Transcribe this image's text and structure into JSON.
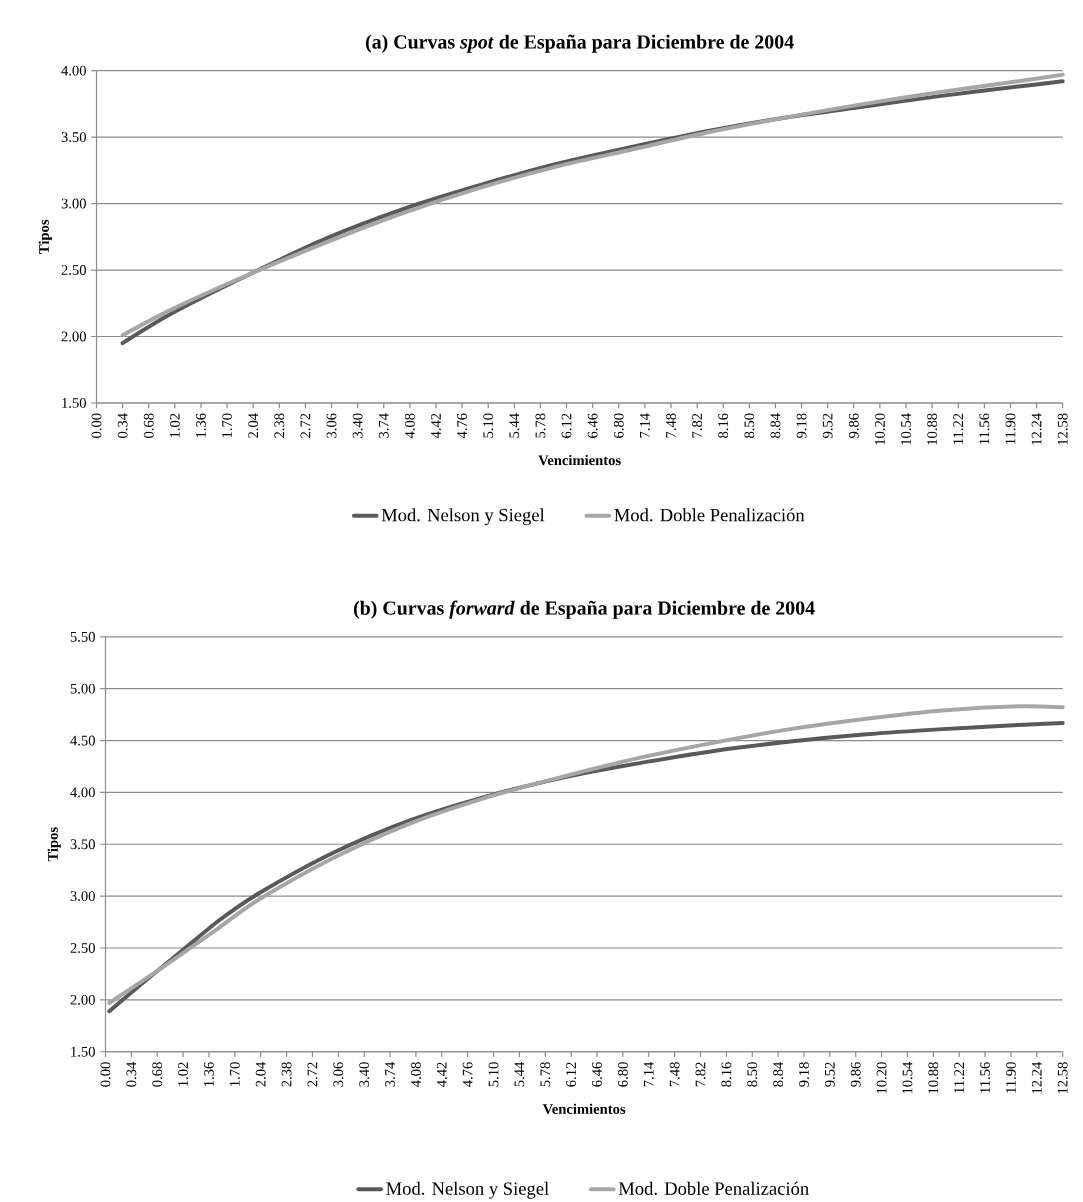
{
  "chart_data": [
    {
      "type": "line",
      "title": "(a) Curvas *spot* de España para Diciembre de 2004",
      "xlabel": "Vencimientos",
      "ylabel": "Tipos",
      "grid": "y",
      "legend": "bottom",
      "xlim": [
        0,
        12.58
      ],
      "xticks": [
        {
          "value": 0,
          "label": "0.00"
        },
        {
          "value": 0.34,
          "label": "0.34"
        },
        {
          "value": 0.68,
          "label": "0.68"
        },
        {
          "value": 1.02,
          "label": "1.02"
        },
        {
          "value": 1.36,
          "label": "1.36"
        },
        {
          "value": 1.7,
          "label": "1.70"
        },
        {
          "value": 2.04,
          "label": "2.04"
        },
        {
          "value": 2.38,
          "label": "2.38"
        },
        {
          "value": 2.72,
          "label": "2.72"
        },
        {
          "value": 3.06,
          "label": "3.06"
        },
        {
          "value": 3.4,
          "label": "3.40"
        },
        {
          "value": 3.74,
          "label": "3.74"
        },
        {
          "value": 4.08,
          "label": "4.08"
        },
        {
          "value": 4.42,
          "label": "4.42"
        },
        {
          "value": 4.76,
          "label": "4.76"
        },
        {
          "value": 5.1,
          "label": "5.10"
        },
        {
          "value": 5.44,
          "label": "5.44"
        },
        {
          "value": 5.78,
          "label": "5.78"
        },
        {
          "value": 6.12,
          "label": "6.12"
        },
        {
          "value": 6.46,
          "label": "6.46"
        },
        {
          "value": 6.8,
          "label": "6.80"
        },
        {
          "value": 7.14,
          "label": "7.14"
        },
        {
          "value": 7.48,
          "label": "7.48"
        },
        {
          "value": 7.82,
          "label": "7.82"
        },
        {
          "value": 8.16,
          "label": "8.16"
        },
        {
          "value": 8.5,
          "label": "8.50"
        },
        {
          "value": 8.84,
          "label": "8.84"
        },
        {
          "value": 9.18,
          "label": "9.18"
        },
        {
          "value": 9.52,
          "label": "9.52"
        },
        {
          "value": 9.86,
          "label": "9.86"
        },
        {
          "value": 10.2,
          "label": "10.20"
        },
        {
          "value": 10.54,
          "label": "10.54"
        },
        {
          "value": 10.88,
          "label": "10.88"
        },
        {
          "value": 11.22,
          "label": "11.22"
        },
        {
          "value": 11.56,
          "label": "11.56"
        },
        {
          "value": 11.9,
          "label": "11.90"
        },
        {
          "value": 12.24,
          "label": "12.24"
        },
        {
          "value": 12.58,
          "label": "12.58"
        }
      ],
      "ylim": [
        1.5,
        4.0
      ],
      "yticks": [
        {
          "value": 1.5,
          "label": "1.50"
        },
        {
          "value": 2.0,
          "label": "2.00"
        },
        {
          "value": 2.5,
          "label": "2.50"
        },
        {
          "value": 3.0,
          "label": "3.00"
        },
        {
          "value": 3.5,
          "label": "3.50"
        },
        {
          "value": 4.0,
          "label": "4.00"
        }
      ],
      "series": [
        {
          "name": "Mod. Nelson y Siegel",
          "color": "#595959",
          "x": [
            0.34,
            1,
            2,
            3,
            4,
            5,
            6,
            7,
            8,
            9,
            10,
            11,
            12,
            12.58
          ],
          "values": [
            1.95,
            2.18,
            2.47,
            2.74,
            2.96,
            3.14,
            3.3,
            3.43,
            3.55,
            3.65,
            3.73,
            3.81,
            3.88,
            3.92
          ]
        },
        {
          "name": "Mod. Doble Penalización",
          "color": "#a6a6a6",
          "x": [
            0.34,
            1,
            2,
            3,
            4,
            5,
            6,
            7,
            8,
            9,
            10,
            11,
            12,
            12.58
          ],
          "values": [
            2.01,
            2.21,
            2.47,
            2.71,
            2.93,
            3.12,
            3.28,
            3.41,
            3.54,
            3.65,
            3.75,
            3.84,
            3.92,
            3.97
          ]
        }
      ]
    },
    {
      "type": "line",
      "title": "(b) Curvas *forward* de España para Diciembre de 2004",
      "xlabel": "Vencimientos",
      "ylabel": "Tipos",
      "grid": "y",
      "legend": "bottom",
      "xlim": [
        0,
        12.58
      ],
      "xticks": [
        {
          "value": 0,
          "label": "0.00"
        },
        {
          "value": 0.34,
          "label": "0.34"
        },
        {
          "value": 0.68,
          "label": "0.68"
        },
        {
          "value": 1.02,
          "label": "1.02"
        },
        {
          "value": 1.36,
          "label": "1.36"
        },
        {
          "value": 1.7,
          "label": "1.70"
        },
        {
          "value": 2.04,
          "label": "2.04"
        },
        {
          "value": 2.38,
          "label": "2.38"
        },
        {
          "value": 2.72,
          "label": "2.72"
        },
        {
          "value": 3.06,
          "label": "3.06"
        },
        {
          "value": 3.4,
          "label": "3.40"
        },
        {
          "value": 3.74,
          "label": "3.74"
        },
        {
          "value": 4.08,
          "label": "4.08"
        },
        {
          "value": 4.42,
          "label": "4.42"
        },
        {
          "value": 4.76,
          "label": "4.76"
        },
        {
          "value": 5.1,
          "label": "5.10"
        },
        {
          "value": 5.44,
          "label": "5.44"
        },
        {
          "value": 5.78,
          "label": "5.78"
        },
        {
          "value": 6.12,
          "label": "6.12"
        },
        {
          "value": 6.46,
          "label": "6.46"
        },
        {
          "value": 6.8,
          "label": "6.80"
        },
        {
          "value": 7.14,
          "label": "7.14"
        },
        {
          "value": 7.48,
          "label": "7.48"
        },
        {
          "value": 7.82,
          "label": "7.82"
        },
        {
          "value": 8.16,
          "label": "8.16"
        },
        {
          "value": 8.5,
          "label": "8.50"
        },
        {
          "value": 8.84,
          "label": "8.84"
        },
        {
          "value": 9.18,
          "label": "9.18"
        },
        {
          "value": 9.52,
          "label": "9.52"
        },
        {
          "value": 9.86,
          "label": "9.86"
        },
        {
          "value": 10.2,
          "label": "10.20"
        },
        {
          "value": 10.54,
          "label": "10.54"
        },
        {
          "value": 10.88,
          "label": "10.88"
        },
        {
          "value": 11.22,
          "label": "11.22"
        },
        {
          "value": 11.56,
          "label": "11.56"
        },
        {
          "value": 11.9,
          "label": "11.90"
        },
        {
          "value": 12.24,
          "label": "12.24"
        },
        {
          "value": 12.58,
          "label": "12.58"
        }
      ],
      "ylim": [
        1.5,
        5.5
      ],
      "yticks": [
        {
          "value": 1.5,
          "label": "1.50"
        },
        {
          "value": 2.0,
          "label": "2.00"
        },
        {
          "value": 2.5,
          "label": "2.50"
        },
        {
          "value": 3.0,
          "label": "3.00"
        },
        {
          "value": 3.5,
          "label": "3.50"
        },
        {
          "value": 4.0,
          "label": "4.00"
        },
        {
          "value": 4.5,
          "label": "4.50"
        },
        {
          "value": 5.0,
          "label": "5.00"
        },
        {
          "value": 5.5,
          "label": "5.50"
        }
      ],
      "series": [
        {
          "name": "Mod. Nelson y Siegel",
          "color": "#595959",
          "x": [
            0.05,
            0.5,
            1,
            1.5,
            2,
            3,
            4,
            5,
            6,
            7,
            8,
            9,
            10,
            11,
            12,
            12.58
          ],
          "values": [
            1.89,
            2.17,
            2.47,
            2.77,
            3.02,
            3.42,
            3.73,
            3.96,
            4.14,
            4.28,
            4.4,
            4.49,
            4.56,
            4.61,
            4.65,
            4.67
          ]
        },
        {
          "name": "Mod. Doble Penalización",
          "color": "#a6a6a6",
          "x": [
            0.05,
            0.5,
            1,
            1.5,
            2,
            3,
            4,
            5,
            6,
            7,
            8,
            9,
            10,
            11,
            12,
            12.58
          ],
          "values": [
            1.97,
            2.19,
            2.44,
            2.7,
            2.96,
            3.37,
            3.7,
            3.95,
            4.15,
            4.33,
            4.48,
            4.61,
            4.71,
            4.79,
            4.83,
            4.82
          ]
        }
      ]
    }
  ]
}
